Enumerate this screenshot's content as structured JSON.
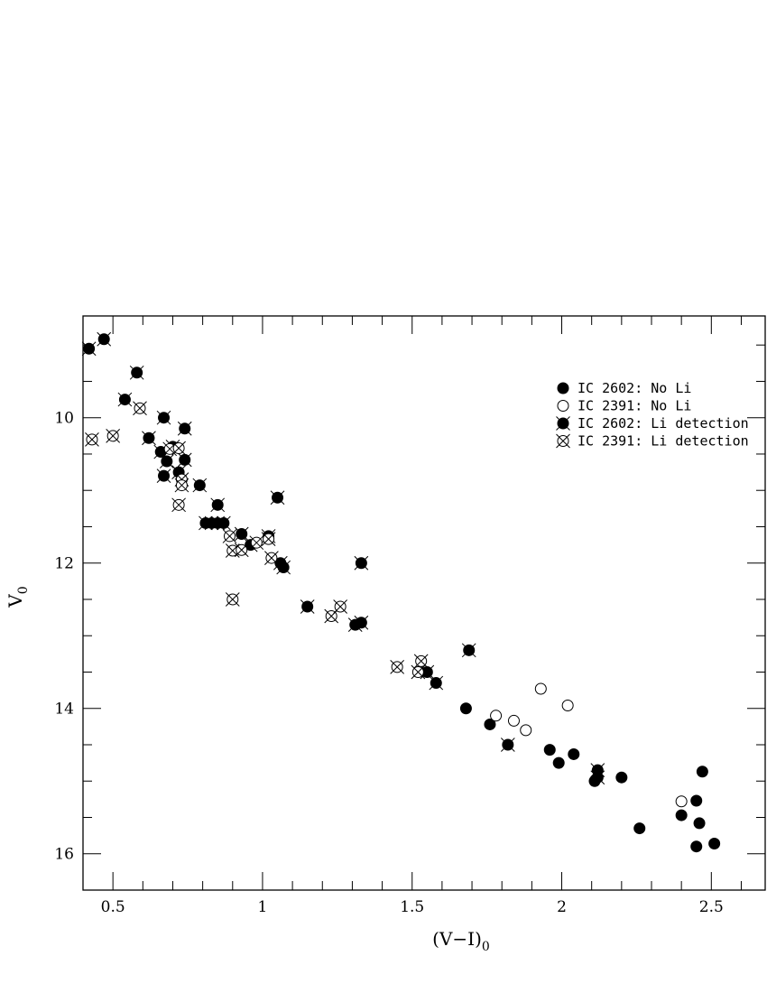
{
  "chart_data": {
    "type": "scatter",
    "xlabel_main": "(V−I)",
    "xlabel_sub": "0",
    "ylabel_main": "V",
    "ylabel_sub": "0",
    "xlim": [
      0.4,
      2.68
    ],
    "ylim": [
      8.6,
      16.5
    ],
    "y_inverted": true,
    "xticks": [
      {
        "value": 0.5,
        "label": "0.5"
      },
      {
        "value": 1,
        "label": "1"
      },
      {
        "value": 1.5,
        "label": "1.5"
      },
      {
        "value": 2,
        "label": "2"
      },
      {
        "value": 2.5,
        "label": "2.5"
      }
    ],
    "yticks": [
      {
        "value": 10,
        "label": "10"
      },
      {
        "value": 12,
        "label": "12"
      },
      {
        "value": 14,
        "label": "14"
      },
      {
        "value": 16,
        "label": "16"
      }
    ],
    "x_minor_step": 0.1,
    "y_minor_step": 0.5,
    "legend_position": "top-right",
    "series": [
      {
        "name": "IC 2602: No Li",
        "marker": "filled-circle",
        "points": [
          [
            1.68,
            14.0
          ],
          [
            1.76,
            14.22
          ],
          [
            1.96,
            14.57
          ],
          [
            1.99,
            14.75
          ],
          [
            2.04,
            14.63
          ],
          [
            2.11,
            15.0
          ],
          [
            2.2,
            14.95
          ],
          [
            2.26,
            15.65
          ],
          [
            2.4,
            15.47
          ],
          [
            2.45,
            15.27
          ],
          [
            2.47,
            14.87
          ],
          [
            2.46,
            15.58
          ],
          [
            2.45,
            15.9
          ],
          [
            2.51,
            15.86
          ]
        ]
      },
      {
        "name": "IC 2391: No Li",
        "marker": "open-circle",
        "points": [
          [
            1.78,
            14.1
          ],
          [
            1.84,
            14.17
          ],
          [
            1.88,
            14.3
          ],
          [
            1.93,
            13.73
          ],
          [
            2.02,
            13.96
          ],
          [
            2.4,
            15.28
          ]
        ]
      },
      {
        "name": "IC 2602: Li detection",
        "marker": "filled-circle-cross",
        "points": [
          [
            0.42,
            9.05
          ],
          [
            0.47,
            8.92
          ],
          [
            0.54,
            9.75
          ],
          [
            0.58,
            9.38
          ],
          [
            0.62,
            10.28
          ],
          [
            0.66,
            10.47
          ],
          [
            0.67,
            10.0
          ],
          [
            0.67,
            10.8
          ],
          [
            0.68,
            10.6
          ],
          [
            0.7,
            10.4
          ],
          [
            0.72,
            10.75
          ],
          [
            0.74,
            10.15
          ],
          [
            0.74,
            10.58
          ],
          [
            0.79,
            10.93
          ],
          [
            0.81,
            11.45
          ],
          [
            0.83,
            11.45
          ],
          [
            0.85,
            11.2
          ],
          [
            0.85,
            11.45
          ],
          [
            0.87,
            11.45
          ],
          [
            0.93,
            11.6
          ],
          [
            0.96,
            11.75
          ],
          [
            1.02,
            11.63
          ],
          [
            1.05,
            11.1
          ],
          [
            1.06,
            12.0
          ],
          [
            1.07,
            12.06
          ],
          [
            1.15,
            12.6
          ],
          [
            1.31,
            12.85
          ],
          [
            1.33,
            12.82
          ],
          [
            1.33,
            12.0
          ],
          [
            1.55,
            13.5
          ],
          [
            1.58,
            13.65
          ],
          [
            1.69,
            13.2
          ],
          [
            1.82,
            14.5
          ],
          [
            2.12,
            14.85
          ],
          [
            2.12,
            14.95
          ]
        ]
      },
      {
        "name": "IC 2391: Li detection",
        "marker": "open-circle-cross",
        "points": [
          [
            0.43,
            10.3
          ],
          [
            0.5,
            10.25
          ],
          [
            0.59,
            9.87
          ],
          [
            0.69,
            10.43
          ],
          [
            0.72,
            10.42
          ],
          [
            0.72,
            11.2
          ],
          [
            0.73,
            10.85
          ],
          [
            0.73,
            10.93
          ],
          [
            0.89,
            11.63
          ],
          [
            0.9,
            11.83
          ],
          [
            0.9,
            12.5
          ],
          [
            0.93,
            11.82
          ],
          [
            0.98,
            11.72
          ],
          [
            1.02,
            11.67
          ],
          [
            1.03,
            11.93
          ],
          [
            1.23,
            12.73
          ],
          [
            1.26,
            12.6
          ],
          [
            1.45,
            13.43
          ],
          [
            1.52,
            13.5
          ],
          [
            1.53,
            13.35
          ]
        ]
      }
    ]
  }
}
